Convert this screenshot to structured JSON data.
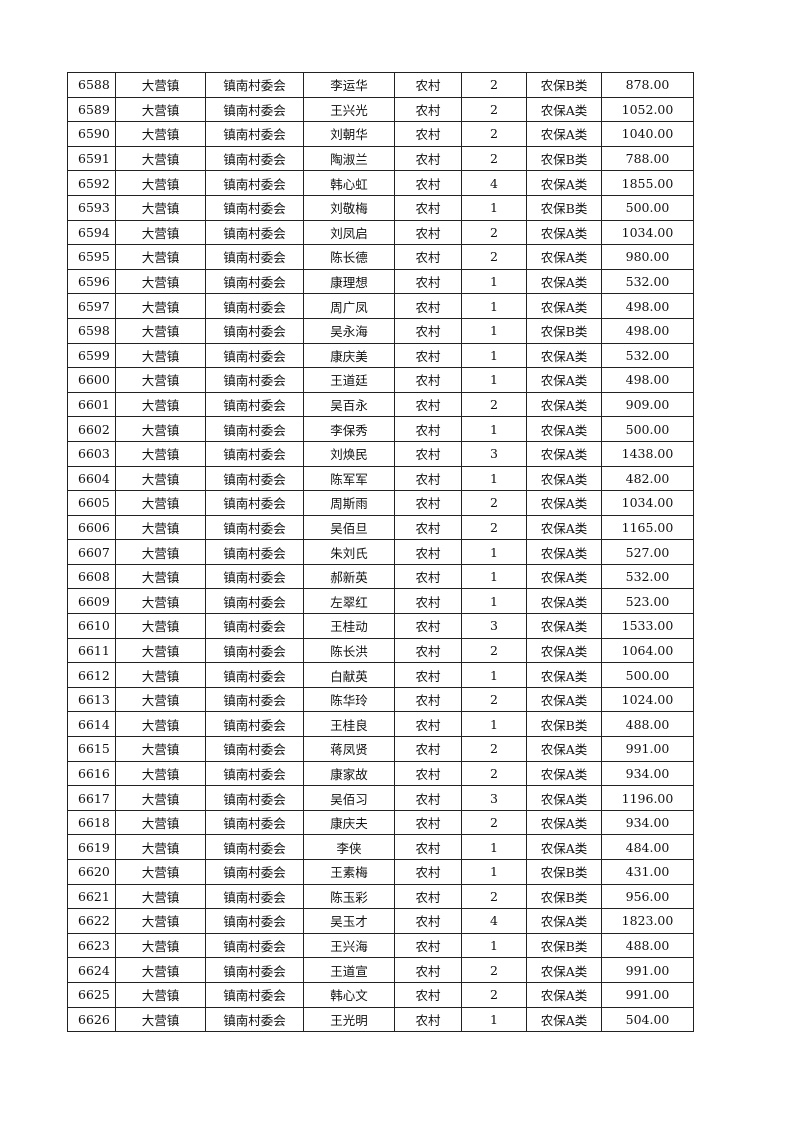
{
  "table": {
    "rows": [
      [
        "6588",
        "大营镇",
        "镇南村委会",
        "李运华",
        "农村",
        "2",
        "农保B类",
        "878.00"
      ],
      [
        "6589",
        "大营镇",
        "镇南村委会",
        "王兴光",
        "农村",
        "2",
        "农保A类",
        "1052.00"
      ],
      [
        "6590",
        "大营镇",
        "镇南村委会",
        "刘朝华",
        "农村",
        "2",
        "农保A类",
        "1040.00"
      ],
      [
        "6591",
        "大营镇",
        "镇南村委会",
        "陶淑兰",
        "农村",
        "2",
        "农保B类",
        "788.00"
      ],
      [
        "6592",
        "大营镇",
        "镇南村委会",
        "韩心虹",
        "农村",
        "4",
        "农保A类",
        "1855.00"
      ],
      [
        "6593",
        "大营镇",
        "镇南村委会",
        "刘敬梅",
        "农村",
        "1",
        "农保B类",
        "500.00"
      ],
      [
        "6594",
        "大营镇",
        "镇南村委会",
        "刘凤启",
        "农村",
        "2",
        "农保A类",
        "1034.00"
      ],
      [
        "6595",
        "大营镇",
        "镇南村委会",
        "陈长德",
        "农村",
        "2",
        "农保A类",
        "980.00"
      ],
      [
        "6596",
        "大营镇",
        "镇南村委会",
        "康理想",
        "农村",
        "1",
        "农保A类",
        "532.00"
      ],
      [
        "6597",
        "大营镇",
        "镇南村委会",
        "周广凤",
        "农村",
        "1",
        "农保A类",
        "498.00"
      ],
      [
        "6598",
        "大营镇",
        "镇南村委会",
        "吴永海",
        "农村",
        "1",
        "农保B类",
        "498.00"
      ],
      [
        "6599",
        "大营镇",
        "镇南村委会",
        "康庆美",
        "农村",
        "1",
        "农保A类",
        "532.00"
      ],
      [
        "6600",
        "大营镇",
        "镇南村委会",
        "王道廷",
        "农村",
        "1",
        "农保A类",
        "498.00"
      ],
      [
        "6601",
        "大营镇",
        "镇南村委会",
        "吴百永",
        "农村",
        "2",
        "农保A类",
        "909.00"
      ],
      [
        "6602",
        "大营镇",
        "镇南村委会",
        "李保秀",
        "农村",
        "1",
        "农保A类",
        "500.00"
      ],
      [
        "6603",
        "大营镇",
        "镇南村委会",
        "刘焕民",
        "农村",
        "3",
        "农保A类",
        "1438.00"
      ],
      [
        "6604",
        "大营镇",
        "镇南村委会",
        "陈军军",
        "农村",
        "1",
        "农保A类",
        "482.00"
      ],
      [
        "6605",
        "大营镇",
        "镇南村委会",
        "周斯雨",
        "农村",
        "2",
        "农保A类",
        "1034.00"
      ],
      [
        "6606",
        "大营镇",
        "镇南村委会",
        "吴佰旦",
        "农村",
        "2",
        "农保A类",
        "1165.00"
      ],
      [
        "6607",
        "大营镇",
        "镇南村委会",
        "朱刘氏",
        "农村",
        "1",
        "农保A类",
        "527.00"
      ],
      [
        "6608",
        "大营镇",
        "镇南村委会",
        "郝新英",
        "农村",
        "1",
        "农保A类",
        "532.00"
      ],
      [
        "6609",
        "大营镇",
        "镇南村委会",
        "左翠红",
        "农村",
        "1",
        "农保A类",
        "523.00"
      ],
      [
        "6610",
        "大营镇",
        "镇南村委会",
        "王桂动",
        "农村",
        "3",
        "农保A类",
        "1533.00"
      ],
      [
        "6611",
        "大营镇",
        "镇南村委会",
        "陈长洪",
        "农村",
        "2",
        "农保A类",
        "1064.00"
      ],
      [
        "6612",
        "大营镇",
        "镇南村委会",
        "白献英",
        "农村",
        "1",
        "农保A类",
        "500.00"
      ],
      [
        "6613",
        "大营镇",
        "镇南村委会",
        "陈华玲",
        "农村",
        "2",
        "农保A类",
        "1024.00"
      ],
      [
        "6614",
        "大营镇",
        "镇南村委会",
        "王桂良",
        "农村",
        "1",
        "农保B类",
        "488.00"
      ],
      [
        "6615",
        "大营镇",
        "镇南村委会",
        "蒋凤贤",
        "农村",
        "2",
        "农保A类",
        "991.00"
      ],
      [
        "6616",
        "大营镇",
        "镇南村委会",
        "康家故",
        "农村",
        "2",
        "农保A类",
        "934.00"
      ],
      [
        "6617",
        "大营镇",
        "镇南村委会",
        "吴佰习",
        "农村",
        "3",
        "农保A类",
        "1196.00"
      ],
      [
        "6618",
        "大营镇",
        "镇南村委会",
        "康庆夫",
        "农村",
        "2",
        "农保A类",
        "934.00"
      ],
      [
        "6619",
        "大营镇",
        "镇南村委会",
        "李侠",
        "农村",
        "1",
        "农保A类",
        "484.00"
      ],
      [
        "6620",
        "大营镇",
        "镇南村委会",
        "王素梅",
        "农村",
        "1",
        "农保B类",
        "431.00"
      ],
      [
        "6621",
        "大营镇",
        "镇南村委会",
        "陈玉彩",
        "农村",
        "2",
        "农保B类",
        "956.00"
      ],
      [
        "6622",
        "大营镇",
        "镇南村委会",
        "吴玉才",
        "农村",
        "4",
        "农保A类",
        "1823.00"
      ],
      [
        "6623",
        "大营镇",
        "镇南村委会",
        "王兴海",
        "农村",
        "1",
        "农保B类",
        "488.00"
      ],
      [
        "6624",
        "大营镇",
        "镇南村委会",
        "王道宣",
        "农村",
        "2",
        "农保A类",
        "991.00"
      ],
      [
        "6625",
        "大营镇",
        "镇南村委会",
        "韩心文",
        "农村",
        "2",
        "农保A类",
        "991.00"
      ],
      [
        "6626",
        "大营镇",
        "镇南村委会",
        "王光明",
        "农村",
        "1",
        "农保A类",
        "504.00"
      ]
    ]
  }
}
